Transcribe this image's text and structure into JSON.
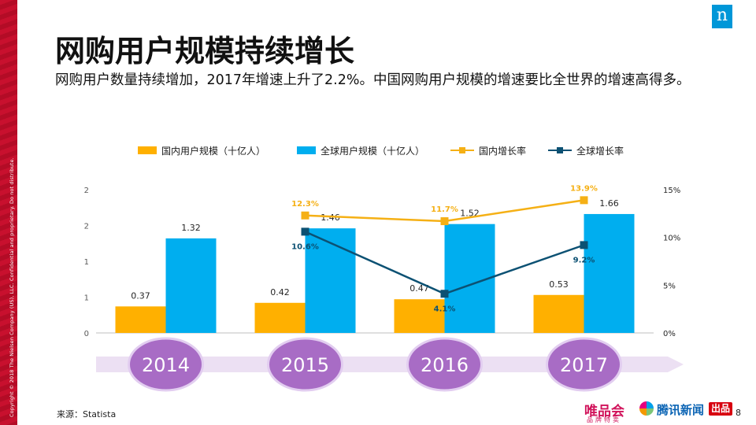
{
  "slide": {
    "title": "网购用户规模持续增长",
    "subtitle": "网购用户数量持续增加，2017年增速上升了2.2%。中国网购用户规模的增速要比全世界的增速高得多。",
    "side_text": "Copyright © 2018 The Nielsen Company (US), LLC. Confidential and proprietary. Do not distribute.",
    "logo_letter": "n",
    "source": "来源：Statista",
    "page_number": "8",
    "brand1": "唯品会",
    "brand1_sub": "品牌特卖",
    "brand2": "腾讯新闻",
    "brand2_badge": "出品"
  },
  "colors": {
    "domestic_bar": "#ffb000",
    "global_bar": "#00aeef",
    "domestic_line": "#f5b015",
    "global_line": "#0c5173",
    "timeline_arrow": "#ece0f3",
    "year_circle": "#a86cc5",
    "side_bar": "#c8102e",
    "logo": "#0097d8"
  },
  "chart_data": {
    "type": "bar",
    "categories": [
      "2014",
      "2015",
      "2016",
      "2017"
    ],
    "series": [
      {
        "name": "国内用户规模（十亿人）",
        "type": "bar",
        "axis": "left",
        "values": [
          0.37,
          0.42,
          0.47,
          0.53
        ],
        "labels": [
          "0.37",
          "0.42",
          "0.47",
          "0.53"
        ]
      },
      {
        "name": "全球用户规模（十亿人）",
        "type": "bar",
        "axis": "left",
        "values": [
          1.32,
          1.46,
          1.52,
          1.66
        ],
        "labels": [
          "1.32",
          "1.46",
          "1.52",
          "1.66"
        ]
      },
      {
        "name": "国内增长率",
        "type": "line",
        "axis": "right",
        "x": [
          "2015",
          "2016",
          "2017"
        ],
        "values": [
          12.3,
          11.7,
          13.9
        ],
        "labels": [
          "12.3%",
          "11.7%",
          "13.9%"
        ]
      },
      {
        "name": "全球增长率",
        "type": "line",
        "axis": "right",
        "x": [
          "2015",
          "2016",
          "2017"
        ],
        "values": [
          10.6,
          4.1,
          9.2
        ],
        "labels": [
          "10.6%",
          "4.1%",
          "9.2%"
        ]
      }
    ],
    "y_left": {
      "range": [
        0,
        2
      ],
      "tick_values": [
        0,
        0.5,
        1,
        1.5,
        2
      ],
      "tick_labels": [
        "0",
        "1",
        "1",
        "2",
        "2"
      ]
    },
    "y_right": {
      "range": [
        0,
        15
      ],
      "tick_values": [
        0,
        5,
        10,
        15
      ],
      "tick_labels": [
        "0%",
        "5%",
        "10%",
        "15%"
      ]
    },
    "legend_position": "top",
    "grid": false
  }
}
